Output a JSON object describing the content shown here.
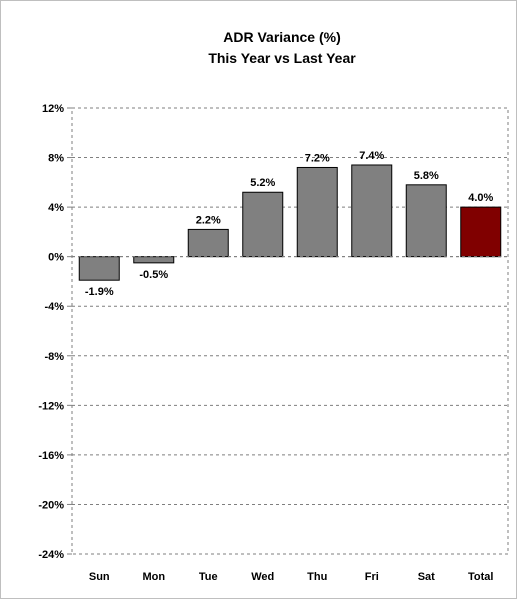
{
  "chart_data": {
    "type": "bar",
    "title": "ADR Variance (%)",
    "subtitle": "This Year vs Last Year",
    "xlabel": "",
    "ylabel": "",
    "categories": [
      "Sun",
      "Mon",
      "Tue",
      "Wed",
      "Thu",
      "Fri",
      "Sat",
      "Total"
    ],
    "values": [
      -1.9,
      -0.5,
      2.2,
      5.2,
      7.2,
      7.4,
      5.8,
      4.0
    ],
    "data_labels": [
      "-1.9%",
      "-0.5%",
      "2.2%",
      "5.2%",
      "7.2%",
      "7.4%",
      "5.8%",
      "4.0%"
    ],
    "ylim": [
      -24,
      12
    ],
    "yticks": [
      12,
      8,
      4,
      0,
      -4,
      -8,
      -12,
      -16,
      -20,
      -24
    ],
    "ytick_labels": [
      "12%",
      "8%",
      "4%",
      "0%",
      "-4%",
      "-8%",
      "-12%",
      "-16%",
      "-20%",
      "-24%"
    ],
    "grid": true,
    "legend": "none",
    "colors": {
      "bar": "#808080",
      "highlight": "#800000",
      "outline": "#000000",
      "grid": "#7f7f7f"
    },
    "highlight_category": "Total"
  }
}
